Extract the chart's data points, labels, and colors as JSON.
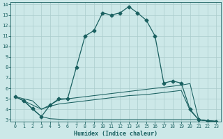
{
  "xlabel": "Humidex (Indice chaleur)",
  "bg_color": "#cce8e8",
  "grid_color": "#aacccc",
  "line_color": "#1a6060",
  "xlim": [
    -0.5,
    23.5
  ],
  "ylim": [
    2.8,
    14.2
  ],
  "yticks": [
    3,
    4,
    5,
    6,
    7,
    8,
    9,
    10,
    11,
    12,
    13,
    14
  ],
  "xticks": [
    0,
    1,
    2,
    3,
    4,
    5,
    6,
    7,
    8,
    9,
    10,
    11,
    12,
    13,
    14,
    15,
    16,
    17,
    18,
    19,
    20,
    21,
    22,
    23
  ],
  "curve1_x": [
    0,
    1,
    2,
    3,
    4,
    5,
    6,
    7,
    8,
    9,
    10,
    11,
    12,
    13,
    14,
    15,
    16,
    17,
    18,
    19,
    20,
    21,
    22,
    23
  ],
  "curve1_y": [
    5.2,
    4.8,
    4.05,
    3.3,
    4.4,
    5.0,
    5.0,
    8.0,
    11.0,
    11.5,
    13.2,
    13.0,
    13.2,
    13.8,
    13.2,
    12.5,
    11.0,
    6.5,
    6.7,
    6.5,
    4.0,
    3.0,
    2.9,
    2.85
  ],
  "curve2_x": [
    0,
    1,
    2,
    3,
    4,
    5,
    6,
    7,
    8,
    9,
    10,
    11,
    12,
    13,
    14,
    15,
    16,
    17,
    18,
    19,
    20,
    21,
    22,
    23
  ],
  "curve2_y": [
    5.2,
    5.0,
    4.8,
    4.0,
    4.4,
    4.9,
    5.0,
    5.1,
    5.2,
    5.3,
    5.4,
    5.5,
    5.6,
    5.7,
    5.8,
    5.9,
    6.0,
    6.1,
    6.2,
    6.3,
    6.45,
    3.0,
    2.9,
    2.85
  ],
  "curve3_x": [
    0,
    1,
    2,
    3,
    4,
    5,
    6,
    7,
    8,
    9,
    10,
    11,
    12,
    13,
    14,
    15,
    16,
    17,
    18,
    19,
    20,
    21,
    22,
    23
  ],
  "curve3_y": [
    5.2,
    4.8,
    4.4,
    4.0,
    4.3,
    4.5,
    4.6,
    4.7,
    4.8,
    4.9,
    5.0,
    5.1,
    5.2,
    5.3,
    5.35,
    5.4,
    5.5,
    5.6,
    5.7,
    5.8,
    3.9,
    3.0,
    2.9,
    2.85
  ],
  "curve4_x": [
    0,
    1,
    2,
    3,
    4,
    5,
    6,
    7,
    8,
    9,
    10,
    11,
    12,
    13,
    14,
    15,
    16,
    17,
    18,
    19,
    20,
    21,
    22,
    23
  ],
  "curve4_y": [
    5.2,
    4.8,
    4.0,
    3.3,
    3.1,
    3.05,
    3.0,
    3.0,
    3.0,
    3.0,
    3.0,
    3.0,
    3.0,
    3.0,
    3.0,
    3.0,
    3.0,
    3.0,
    3.0,
    3.0,
    3.0,
    3.0,
    2.9,
    2.85
  ]
}
